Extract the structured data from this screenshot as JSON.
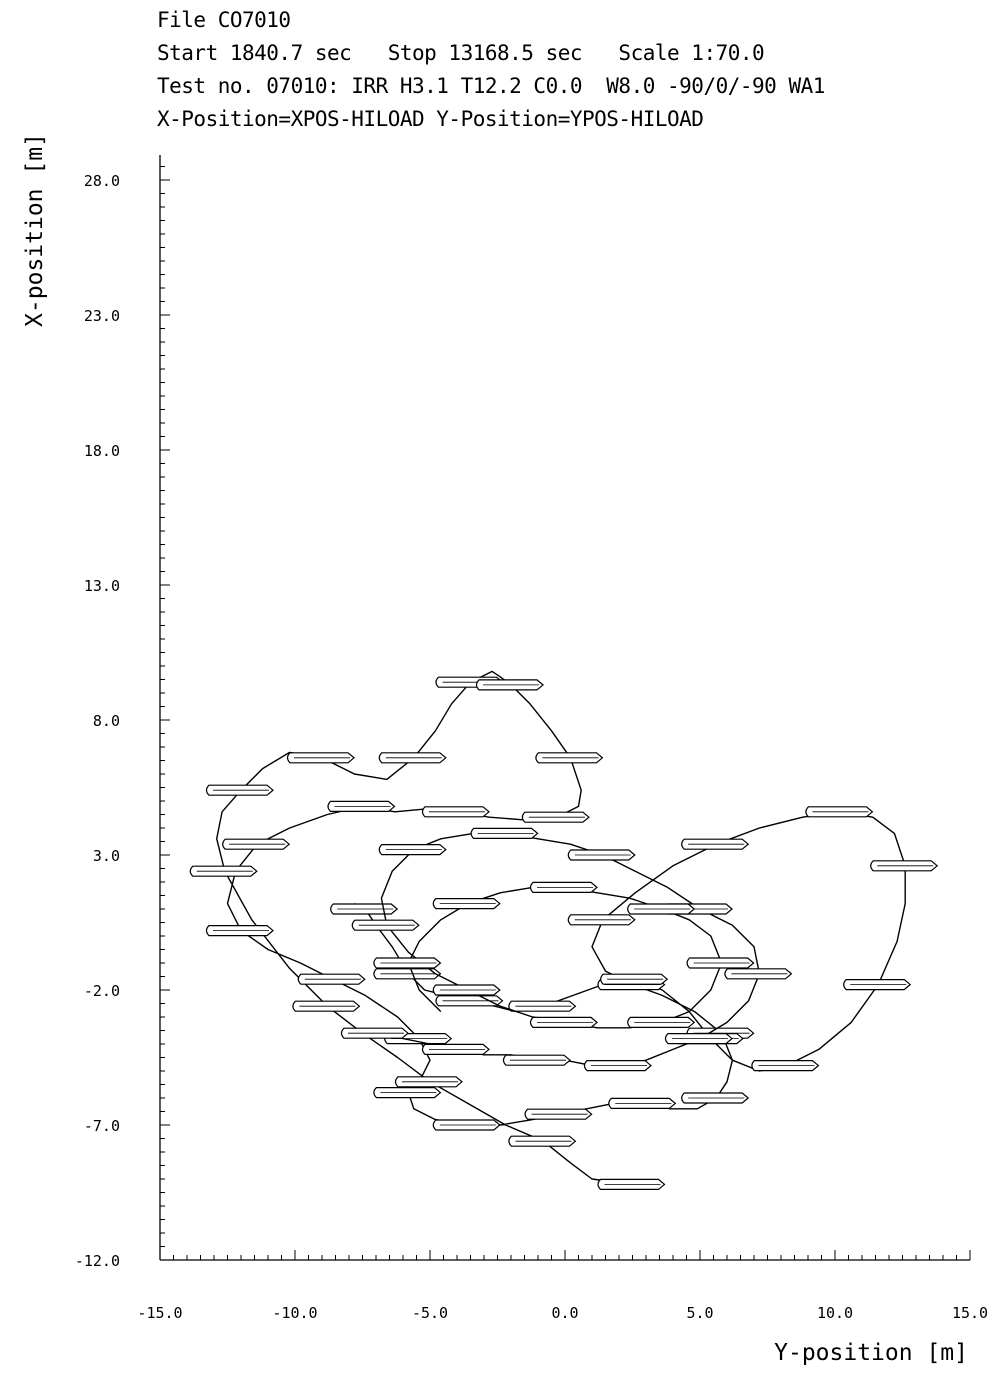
{
  "header": {
    "line1": "File CO7010",
    "line2": "Start 1840.7 sec   Stop 13168.5 sec   Scale 1:70.0",
    "line3": "Test no. 07010: IRR H3.1 T12.2 C0.0  W8.0 -90/0/-90 WA1",
    "line4": "X-Position=XPOS-HILOAD Y-Position=YPOS-HILOAD"
  },
  "chart_data": {
    "type": "line",
    "title": "",
    "xlabel": "Y-position [m]",
    "ylabel": "X-position [m]",
    "xlim": [
      -15.0,
      15.0
    ],
    "ylim": [
      -12.0,
      30.0
    ],
    "x_ticks": [
      "-15.0",
      "-10.0",
      "-5.0",
      "0.0",
      "5.0",
      "10.0",
      "15.0"
    ],
    "y_ticks": [
      "28.0",
      "23.0",
      "18.0",
      "13.0",
      "8.0",
      "3.0",
      "-2.0",
      "-7.0",
      "-12.0"
    ],
    "grid": false,
    "color": "#000000",
    "series": [
      {
        "x": [
          2.5,
          1.0,
          0.2,
          -0.8,
          -2.2,
          -3.6,
          -5.0,
          -6.2,
          -7.5,
          -8.8,
          -10.2,
          -11.6,
          -12.6,
          -12.9,
          -12.7,
          -12.0,
          -11.2,
          -10.2,
          -9.0,
          -7.8,
          -6.6,
          -5.6,
          -4.8,
          -4.2,
          -3.5,
          -2.7,
          -2.4,
          -2.0,
          -1.3,
          -0.5,
          0.2,
          0.6,
          0.5,
          -0.3,
          -1.5,
          -2.8,
          -4.0,
          -5.2,
          -6.3,
          -7.5,
          -8.8,
          -10.2,
          -11.4,
          -12.2,
          -12.5,
          -12.0,
          -11.0,
          -9.8,
          -8.6,
          -7.4,
          -6.2,
          -5.4,
          -5.0,
          -5.3,
          -5.8,
          -5.6,
          -4.8,
          -3.6,
          -2.4,
          -1.2,
          -0.2,
          0.8,
          1.8,
          2.9,
          3.9,
          4.9,
          5.6,
          6.0,
          6.2,
          5.8,
          4.8,
          3.6,
          2.5,
          1.5,
          1.0,
          1.4,
          2.6,
          4.0,
          5.6,
          7.2,
          8.8,
          10.2,
          11.4,
          12.2,
          12.6,
          12.6,
          12.3,
          11.6,
          10.6,
          9.4,
          8.2,
          7.2,
          6.2,
          5.4,
          4.6,
          3.6,
          2.6,
          1.4,
          0.3,
          -0.8,
          -1.8,
          -2.6,
          -3.5,
          -4.4,
          -5.2,
          -5.8,
          -6.4,
          -7.0,
          -7.4,
          -7.8
        ],
        "y": [
          -9.2,
          -9.0,
          -8.4,
          -7.6,
          -7.0,
          -6.2,
          -5.4,
          -4.5,
          -3.6,
          -2.6,
          -1.2,
          0.6,
          2.4,
          3.6,
          4.6,
          5.4,
          6.2,
          6.8,
          6.6,
          6.0,
          5.8,
          6.6,
          7.6,
          8.6,
          9.4,
          9.8,
          9.6,
          9.3,
          8.6,
          7.6,
          6.6,
          5.4,
          4.8,
          4.4,
          4.3,
          4.4,
          4.6,
          4.7,
          4.6,
          4.8,
          4.5,
          4.0,
          3.4,
          2.4,
          1.2,
          0.2,
          -0.5,
          -1.0,
          -1.6,
          -2.2,
          -3.0,
          -3.8,
          -4.6,
          -5.2,
          -5.8,
          -6.4,
          -6.8,
          -7.0,
          -7.0,
          -6.8,
          -6.6,
          -6.4,
          -6.2,
          -6.2,
          -6.4,
          -6.4,
          -6.0,
          -5.4,
          -4.6,
          -3.6,
          -2.8,
          -2.2,
          -1.8,
          -1.3,
          -0.4,
          0.6,
          1.6,
          2.6,
          3.4,
          4.0,
          4.4,
          4.6,
          4.4,
          3.8,
          2.6,
          1.2,
          -0.2,
          -1.8,
          -3.2,
          -4.2,
          -4.8,
          -5.0,
          -4.6,
          -3.8,
          -2.8,
          -2.0,
          -1.6,
          -1.8,
          -2.2,
          -2.6,
          -2.8,
          -2.6,
          -2.4,
          -2.2,
          -2.0,
          -1.4,
          -0.4,
          0.4,
          1.0,
          1.2
        ]
      },
      {
        "x": [
          -7.0,
          -6.0,
          -5.0,
          -4.0,
          -3.0,
          -2.0,
          -1.0,
          0.0,
          1.0,
          2.0,
          3.0,
          4.0,
          5.0,
          6.0,
          6.8,
          7.2,
          7.0,
          6.2,
          5.0,
          3.8,
          2.6,
          1.4,
          0.2,
          -1.0,
          -2.2,
          -3.4,
          -4.6,
          -5.6,
          -6.4,
          -6.8,
          -6.6,
          -5.8,
          -4.8,
          -3.6,
          -2.4,
          -1.2,
          0.0,
          1.2,
          2.4,
          3.6,
          4.6,
          5.4,
          5.8,
          5.4,
          4.6,
          3.6,
          2.4,
          1.2,
          0.0,
          -1.2,
          -2.4,
          -3.6,
          -4.6,
          -5.4,
          -5.8,
          -5.4,
          -4.6
        ],
        "y": [
          -3.6,
          -3.8,
          -4.0,
          -4.2,
          -4.4,
          -4.4,
          -4.6,
          -4.6,
          -4.8,
          -4.8,
          -4.6,
          -4.2,
          -3.8,
          -3.2,
          -2.4,
          -1.4,
          -0.4,
          0.4,
          1.0,
          1.8,
          2.4,
          3.0,
          3.4,
          3.6,
          3.8,
          3.8,
          3.6,
          3.2,
          2.4,
          1.4,
          0.4,
          -0.6,
          -1.4,
          -2.0,
          -2.6,
          -3.0,
          -3.2,
          -3.4,
          -3.4,
          -3.2,
          -2.8,
          -2.0,
          -1.0,
          0.0,
          0.6,
          1.0,
          1.4,
          1.6,
          1.8,
          1.8,
          1.6,
          1.2,
          0.6,
          -0.2,
          -1.0,
          -2.0,
          -2.8
        ]
      }
    ]
  }
}
